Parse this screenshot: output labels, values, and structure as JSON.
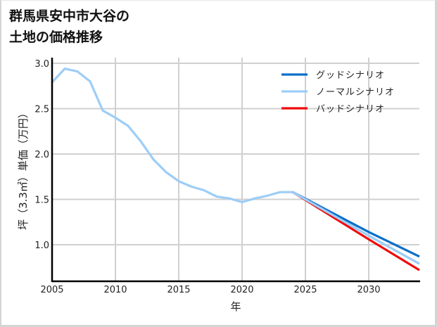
{
  "title": {
    "line1": "群馬県安中市大谷の",
    "line2": "土地の価格推移"
  },
  "colors": {
    "good": "#0a6fc9",
    "normal": "#9dcdf7",
    "bad": "#f00a0a",
    "grid": "#d0d0d0",
    "axis": "#000000"
  },
  "chart_data": {
    "type": "line",
    "title": "群馬県安中市大谷の土地の価格推移",
    "xlabel": "年",
    "ylabel": "坪（3.3㎡）単価（万円）",
    "xlim": [
      2005,
      2034
    ],
    "ylim": [
      0.6,
      3.07
    ],
    "x_ticks": [
      2005,
      2010,
      2015,
      2020,
      2025,
      2030
    ],
    "y_ticks": [
      1.0,
      1.5,
      2.0,
      2.5,
      3.0
    ],
    "x_tick_labels": [
      "2005",
      "2010",
      "2015",
      "2020",
      "2025",
      "2030"
    ],
    "y_tick_labels": [
      "1.0",
      "1.5",
      "2.0",
      "2.5",
      "3.0"
    ],
    "grid": true,
    "legend_position": "upper right",
    "series": [
      {
        "name": "グッドシナリオ",
        "color": "#0a6fc9",
        "x": [
          2024,
          2030,
          2034
        ],
        "values": [
          1.58,
          1.14,
          0.87
        ]
      },
      {
        "name": "ノーマルシナリオ",
        "color": "#9dcdf7",
        "x": [
          2005,
          2006,
          2007,
          2008,
          2009,
          2010,
          2011,
          2012,
          2013,
          2014,
          2015,
          2016,
          2017,
          2018,
          2019,
          2020,
          2021,
          2022,
          2023,
          2024,
          2030,
          2034
        ],
        "values": [
          2.79,
          2.94,
          2.91,
          2.8,
          2.48,
          2.4,
          2.31,
          2.14,
          1.94,
          1.8,
          1.7,
          1.64,
          1.6,
          1.53,
          1.51,
          1.47,
          1.51,
          1.54,
          1.58,
          1.58,
          1.1,
          0.79
        ]
      },
      {
        "name": "バッドシナリオ",
        "color": "#f00a0a",
        "x": [
          2024,
          2030,
          2034
        ],
        "values": [
          1.58,
          1.06,
          0.72
        ]
      }
    ]
  },
  "legend": {
    "items": [
      {
        "label": "グッドシナリオ",
        "color": "#0a6fc9"
      },
      {
        "label": "ノーマルシナリオ",
        "color": "#9dcdf7"
      },
      {
        "label": "バッドシナリオ",
        "color": "#f00a0a"
      }
    ]
  }
}
